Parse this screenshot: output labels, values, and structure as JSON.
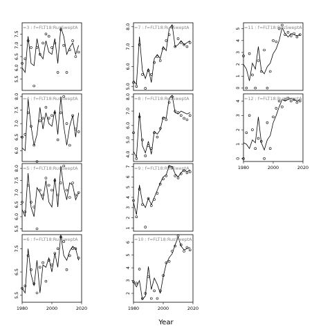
{
  "chart_data": {
    "type": "line",
    "xlabel": "Year",
    "x_range": [
      1980,
      2020
    ],
    "x_ticks": [
      1980,
      2000,
      2020
    ],
    "grid": false,
    "legend": "none",
    "panels": [
      {
        "title": "=3 : f=FLT18:RusSweptA",
        "column": 1,
        "row": 1,
        "ylim": [
          5.0,
          8.0
        ],
        "yticks": [
          5.5,
          6.0,
          6.5,
          7.0,
          7.5
        ],
        "tick_labels": [
          "5.5",
          "6.0",
          "6.5",
          "7.0",
          "7.5"
        ],
        "x": [
          1980,
          1982,
          1984,
          1986,
          1988,
          1990,
          1992,
          1994,
          1996,
          1998,
          2000,
          2002,
          2004,
          2006,
          2008,
          2010,
          2012,
          2014,
          2016,
          2018
        ],
        "fitted": [
          6.0,
          5.8,
          7.4,
          6.2,
          6.1,
          7.3,
          6.6,
          6.4,
          7.2,
          6.7,
          6.6,
          7.3,
          6.2,
          7.8,
          7.4,
          6.6,
          6.9,
          7.1,
          6.6,
          7.0
        ],
        "observed": [
          6.2,
          6.4,
          7.2,
          6.9,
          5.2,
          6.9,
          6.6,
          7.1,
          7.5,
          7.4,
          6.9,
          7.1,
          5.8,
          7.7,
          7.0,
          5.8,
          6.8,
          7.2,
          6.5,
          6.7
        ]
      },
      {
        "title": "=4 : f=FLT18:RusSweptA",
        "column": 1,
        "row": 2,
        "ylim": [
          5.6,
          8.1
        ],
        "yticks": [
          6.0,
          6.5,
          7.0,
          7.5,
          8.0
        ],
        "tick_labels": [
          "6.0",
          "6.5",
          "7.0",
          "7.5",
          "8.0"
        ],
        "x": [
          1980,
          1982,
          1984,
          1986,
          1988,
          1990,
          1992,
          1994,
          1996,
          1998,
          2000,
          2002,
          2004,
          2006,
          2008,
          2010,
          2012,
          2014,
          2016,
          2018
        ],
        "fitted": [
          6.1,
          6.0,
          7.9,
          6.9,
          6.2,
          6.6,
          7.6,
          6.8,
          7.4,
          7.0,
          6.9,
          7.5,
          6.6,
          8.0,
          6.9,
          6.2,
          6.9,
          7.3,
          6.5,
          7.4
        ],
        "observed": [
          6.5,
          6.6,
          7.4,
          6.9,
          6.2,
          5.6,
          7.1,
          7.2,
          7.6,
          7.2,
          7.3,
          7.4,
          6.4,
          7.4,
          8.0,
          7.0,
          6.2,
          7.3,
          6.8,
          6.7
        ]
      },
      {
        "title": "=5 : f=FLT18:RusSweptA",
        "column": 1,
        "row": 3,
        "ylim": [
          5.4,
          8.2
        ],
        "yticks": [
          5.5,
          6.0,
          6.5,
          7.0,
          7.5,
          8.0
        ],
        "tick_labels": [
          "5.5",
          "6.0",
          "6.5",
          "7.0",
          "7.5",
          "8.0"
        ],
        "x": [
          1980,
          1982,
          1984,
          1986,
          1988,
          1990,
          1992,
          1994,
          1996,
          1998,
          2000,
          2002,
          2004,
          2006,
          2008,
          2010,
          2012,
          2014,
          2016,
          2018
        ],
        "fitted": [
          6.3,
          6.0,
          7.8,
          6.4,
          6.0,
          7.2,
          7.0,
          6.7,
          7.5,
          6.6,
          6.4,
          7.6,
          6.4,
          8.1,
          7.2,
          6.7,
          7.4,
          7.3,
          6.7,
          7.0
        ],
        "observed": [
          6.6,
          6.2,
          7.3,
          6.6,
          6.4,
          5.5,
          7.1,
          6.9,
          7.6,
          7.3,
          7.1,
          7.5,
          6.9,
          7.4,
          8.1,
          7.1,
          6.8,
          7.4,
          6.9,
          7.0
        ]
      },
      {
        "title": "=6 : f=FLT18:RusSweptA",
        "column": 1,
        "row": 4,
        "ylim": [
          5.2,
          8.1
        ],
        "yticks": [
          5.5,
          6.5,
          7.5
        ],
        "tick_labels": [
          "5.5",
          "6.5",
          "7.5"
        ],
        "x": [
          1980,
          1982,
          1984,
          1986,
          1988,
          1990,
          1992,
          1994,
          1996,
          1998,
          2000,
          2002,
          2004,
          2006,
          2008,
          2010,
          2012,
          2014,
          2016,
          2018
        ],
        "fitted": [
          5.8,
          5.6,
          7.5,
          6.4,
          5.9,
          7.0,
          5.6,
          6.8,
          6.7,
          7.1,
          6.5,
          7.3,
          6.7,
          8.1,
          7.2,
          7.0,
          7.4,
          7.6,
          7.5,
          7.0
        ],
        "observed": [
          5.8,
          5.9,
          7.2,
          6.6,
          6.0,
          5.6,
          6.7,
          6.9,
          6.1,
          7.0,
          6.8,
          7.3,
          7.5,
          8.0,
          7.8,
          6.6,
          7.2,
          7.5,
          7.5,
          7.1
        ]
      },
      {
        "title": "=7 : f=FLT18:RusSweptA",
        "column": 2,
        "row": 1,
        "ylim": [
          4.8,
          8.2
        ],
        "yticks": [
          5.0,
          6.0,
          7.0,
          8.0
        ],
        "tick_labels": [
          "5.0",
          "6.0",
          "7.0",
          "8.0"
        ],
        "x": [
          1980,
          1982,
          1984,
          1986,
          1988,
          1990,
          1992,
          1994,
          1996,
          1998,
          2000,
          2002,
          2004,
          2006,
          2008,
          2010,
          2012,
          2014,
          2016,
          2018
        ],
        "fitted": [
          5.3,
          5.1,
          7.5,
          5.8,
          5.4,
          5.9,
          5.2,
          6.4,
          6.6,
          6.4,
          7.0,
          6.8,
          7.9,
          8.1,
          7.0,
          7.1,
          7.3,
          7.1,
          7.2,
          7.3
        ],
        "observed": [
          5.2,
          5.0,
          7.1,
          5.6,
          4.9,
          5.8,
          5.6,
          6.2,
          6.5,
          6.3,
          6.9,
          7.3,
          7.6,
          8.0,
          7.0,
          7.4,
          7.2,
          7.1,
          7.0,
          7.2
        ]
      },
      {
        "title": "=8 : f=FLT18:RusSweptA",
        "column": 2,
        "row": 2,
        "ylim": [
          3.5,
          8.2
        ],
        "yticks": [
          4.0,
          5.0,
          6.0,
          7.0,
          8.0
        ],
        "tick_labels": [
          "4.0",
          "5.0",
          "6.0",
          "7.0",
          "8.0"
        ],
        "x": [
          1980,
          1982,
          1984,
          1986,
          1988,
          1990,
          1992,
          1994,
          1996,
          1998,
          2000,
          2002,
          2004,
          2006,
          2008,
          2010,
          2012,
          2014,
          2016,
          2018
        ],
        "fitted": [
          4.2,
          3.8,
          6.9,
          4.6,
          4.1,
          4.9,
          4.0,
          5.6,
          5.4,
          5.7,
          6.6,
          6.5,
          7.9,
          8.1,
          6.9,
          6.8,
          7.0,
          6.9,
          6.8,
          6.9
        ],
        "observed": [
          5.5,
          3.7,
          6.6,
          5.0,
          3.9,
          4.6,
          4.4,
          5.5,
          5.2,
          5.8,
          6.5,
          6.4,
          7.6,
          8.0,
          7.0,
          6.9,
          6.7,
          6.5,
          6.4,
          6.7
        ]
      },
      {
        "title": "=9 : f=FLT18:RusSweptA",
        "column": 2,
        "row": 3,
        "ylim": [
          0.7,
          7.3
        ],
        "yticks": [
          1,
          2,
          3,
          4,
          5,
          6,
          7
        ],
        "tick_labels": [
          "1",
          "2",
          "3",
          "4",
          "5",
          "6",
          "7"
        ],
        "x": [
          1980,
          1982,
          1984,
          1986,
          1988,
          1990,
          1992,
          1994,
          1996,
          1998,
          2000,
          2002,
          2004,
          2006,
          2008,
          2010,
          2012,
          2014,
          2016,
          2018
        ],
        "fitted": [
          3.5,
          2.3,
          5.2,
          3.5,
          3.0,
          3.9,
          3.3,
          4.0,
          4.7,
          5.4,
          6.0,
          6.2,
          7.1,
          7.0,
          6.3,
          6.0,
          6.4,
          6.7,
          6.5,
          6.7
        ],
        "observed": [
          3.7,
          2.1,
          4.8,
          3.3,
          1.1,
          3.9,
          3.2,
          3.8,
          4.4,
          5.3,
          5.8,
          6.1,
          7.0,
          6.9,
          6.1,
          5.9,
          6.3,
          6.6,
          6.4,
          6.5
        ]
      },
      {
        "title": "=10 : f=FLT18:RusSweptA",
        "column": 2,
        "row": 4,
        "ylim": [
          1.3,
          6.6
        ],
        "yticks": [
          2,
          3,
          4,
          5,
          6
        ],
        "tick_labels": [
          "2",
          "3",
          "4",
          "5",
          "6"
        ],
        "x": [
          1980,
          1982,
          1984,
          1986,
          1988,
          1990,
          1992,
          1994,
          1996,
          1998,
          2000,
          2002,
          2004,
          2006,
          2008,
          2010,
          2012,
          2014,
          2016,
          2018
        ],
        "fitted": [
          2.9,
          2.5,
          3.0,
          1.5,
          1.8,
          4.1,
          2.3,
          3.2,
          2.7,
          2.0,
          3.3,
          4.3,
          4.8,
          5.1,
          5.8,
          6.4,
          5.7,
          5.4,
          5.5,
          5.6
        ],
        "observed": [
          2.9,
          2.8,
          3.9,
          1.6,
          2.0,
          3.3,
          1.6,
          2.2,
          1.6,
          2.2,
          3.4,
          4.4,
          4.5,
          5.3,
          5.7,
          6.5,
          5.8,
          5.3,
          5.6,
          5.4
        ]
      },
      {
        "title": "=11 : f=FLT18:RusSweptA",
        "column": 3,
        "row": 1,
        "ylim": [
          -0.2,
          5.5
        ],
        "yticks": [
          0,
          1,
          2,
          3,
          4,
          5
        ],
        "tick_labels": [
          "0",
          "1",
          "2",
          "3",
          "4",
          "5"
        ],
        "x": [
          1980,
          1982,
          1984,
          1986,
          1988,
          1990,
          1992,
          1994,
          1996,
          1998,
          2000,
          2002,
          2004,
          2006,
          2008,
          2010,
          2012,
          2014,
          2016,
          2018
        ],
        "fitted": [
          2.0,
          1.6,
          0.6,
          2.1,
          1.6,
          3.5,
          1.5,
          1.2,
          1.8,
          2.1,
          2.9,
          3.3,
          4.0,
          5.1,
          4.6,
          4.3,
          4.6,
          4.5,
          4.4,
          4.5
        ],
        "observed": [
          2.7,
          0.0,
          2.9,
          1.1,
          0.0,
          2.3,
          1.4,
          3.2,
          0.0,
          1.4,
          4.0,
          3.9,
          5.0,
          5.3,
          4.5,
          4.7,
          4.4,
          4.6,
          4.3,
          4.5
        ]
      },
      {
        "title": "=12 : f=FLT18:RusSweptA",
        "column": 3,
        "row": 2,
        "ylim": [
          -0.2,
          4.5
        ],
        "yticks": [
          0,
          1,
          2,
          3,
          4
        ],
        "tick_labels": [
          "0",
          "1",
          "2",
          "3",
          "4"
        ],
        "x": [
          1980,
          1982,
          1984,
          1986,
          1988,
          1990,
          1992,
          1994,
          1996,
          1998,
          2000,
          2002,
          2004,
          2006,
          2008,
          2010,
          2012,
          2014,
          2016,
          2018
        ],
        "fitted": [
          1.1,
          1.0,
          0.7,
          1.3,
          1.1,
          2.9,
          1.1,
          0.6,
          1.3,
          1.6,
          2.5,
          3.0,
          3.6,
          4.1,
          4.0,
          4.1,
          4.2,
          4.1,
          4.0,
          4.1
        ],
        "observed": [
          0.0,
          1.8,
          3.0,
          2.0,
          0.7,
          1.4,
          1.2,
          0.0,
          2.5,
          0.7,
          2.9,
          3.5,
          4.0,
          3.6,
          4.1,
          4.2,
          4.0,
          4.1,
          3.9,
          4.0
        ]
      }
    ]
  }
}
